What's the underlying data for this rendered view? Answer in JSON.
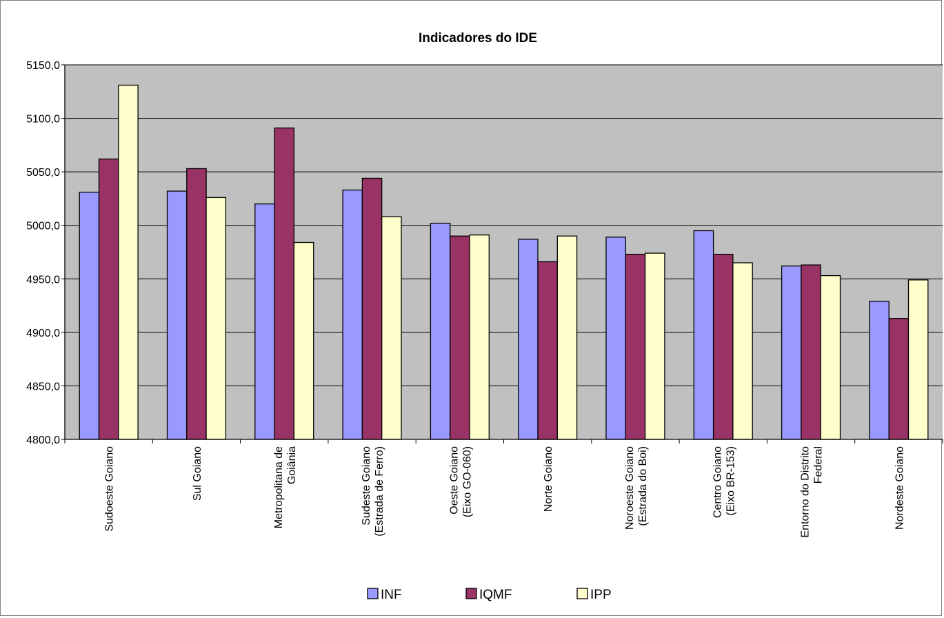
{
  "chart_data": {
    "type": "bar",
    "title": "Indicadores do IDE",
    "xlabel": "",
    "ylabel": "",
    "ylim": [
      4800,
      5150
    ],
    "yticks": [
      "4800,0",
      "4850,0",
      "4900,0",
      "4950,0",
      "5000,0",
      "5050,0",
      "5100,0",
      "5150,0"
    ],
    "grid": true,
    "legend_position": "bottom",
    "categories": [
      [
        "Sudoeste Goiano"
      ],
      [
        "Sul Goiano"
      ],
      [
        "Metropolitana de",
        "Goiânia"
      ],
      [
        "Sudeste Goiano",
        "(Estrada de Ferro)"
      ],
      [
        "Oeste Goiano",
        "(Eixo GO-060)"
      ],
      [
        "Norte Goiano"
      ],
      [
        "Noroeste Goiano",
        "(Estrada do Boi)"
      ],
      [
        "Centro Goiano",
        "(Eixo BR-153)"
      ],
      [
        "Entorno do Distrito",
        "Federal"
      ],
      [
        "Nordeste Goiano"
      ]
    ],
    "series": [
      {
        "name": "INF",
        "color": "#9999ff",
        "values": [
          5031,
          5032,
          5020,
          5033,
          5002,
          4987,
          4989,
          4995,
          4962,
          4929
        ]
      },
      {
        "name": "IQMF",
        "color": "#993366",
        "values": [
          5062,
          5053,
          5091,
          5044,
          4990,
          4966,
          4973,
          4973,
          4963,
          4913
        ]
      },
      {
        "name": "IPP",
        "color": "#ffffcc",
        "values": [
          5131,
          5026,
          4984,
          5008,
          4991,
          4990,
          4974,
          4965,
          4953,
          4949
        ]
      }
    ],
    "plot_background": "#c0c0c0"
  }
}
